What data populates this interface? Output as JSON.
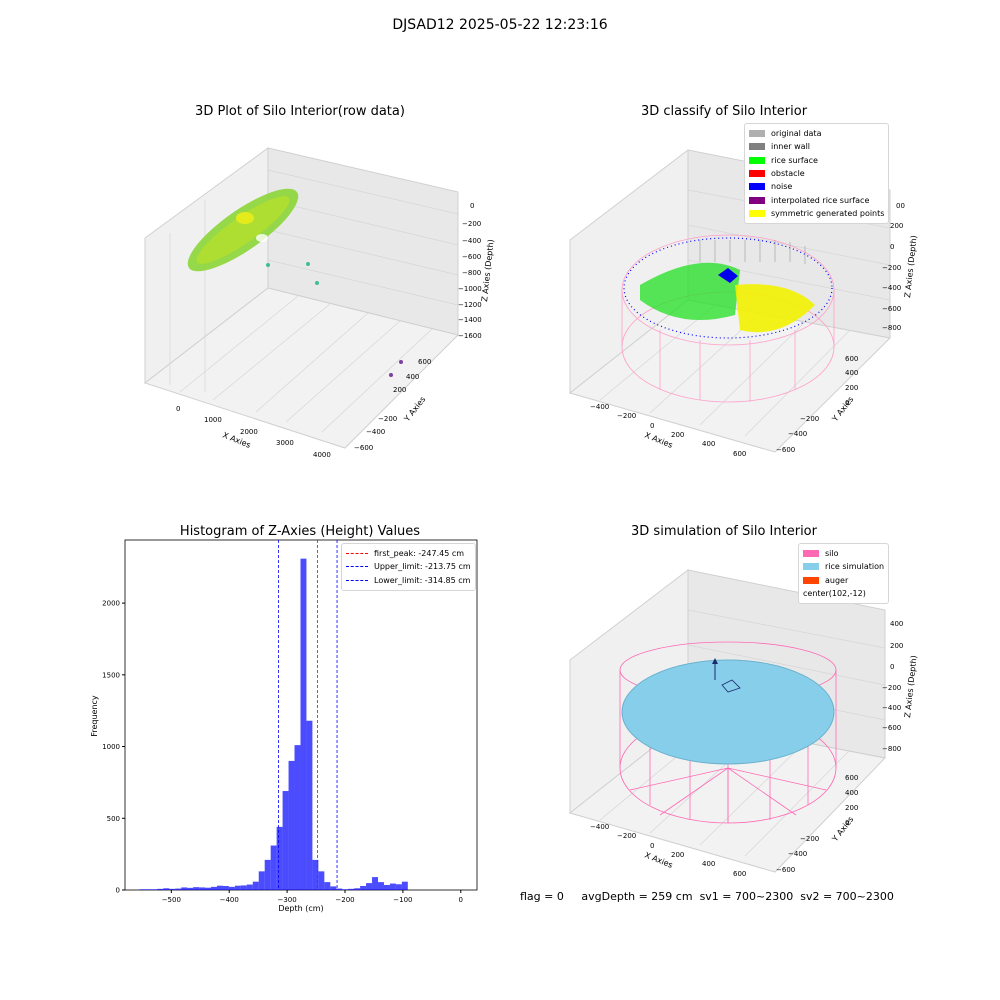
{
  "suptitle": "DJSAD12 2025-05-22 12:23:16",
  "panels": {
    "p1": {
      "title": "3D Plot of Silo Interior(row data)",
      "xlabel": "X Axies",
      "ylabel": "Y Axies",
      "zlabel": "Z Axies (Depth)",
      "xticks": [
        "0",
        "1000",
        "2000",
        "3000",
        "4000"
      ],
      "yticks": [
        "600",
        "400",
        "200",
        "−200",
        "−400",
        "−600"
      ],
      "zticks": [
        "0",
        "−200",
        "−400",
        "−600",
        "−800",
        "−1000",
        "−1200",
        "−1400",
        "−1600"
      ]
    },
    "p2": {
      "title": "3D classify of Silo Interior",
      "xlabel": "X Axies",
      "ylabel": "Y Axies",
      "zlabel": "Z Axies (Depth)",
      "xticks": [
        "−400",
        "−200",
        "0",
        "200",
        "400",
        "600"
      ],
      "yticks": [
        "600",
        "400",
        "200",
        "0",
        "−200",
        "−400",
        "−600"
      ],
      "zticks": [
        "200",
        "0",
        "−200",
        "−400",
        "−600",
        "−800"
      ],
      "zticks_extra": [
        "00"
      ],
      "legend": [
        {
          "label": "original data",
          "color": "#b0b0b0"
        },
        {
          "label": "inner wall",
          "color": "#808080"
        },
        {
          "label": "rice surface",
          "color": "#00ff00"
        },
        {
          "label": "obstacle",
          "color": "#ff0000"
        },
        {
          "label": "noise",
          "color": "#0000ff"
        },
        {
          "label": "interpolated rice surface",
          "color": "#800080"
        },
        {
          "label": "symmetric generated points",
          "color": "#ffff00"
        }
      ]
    },
    "p4": {
      "title": "3D simulation of Silo Interior",
      "xlabel": "X Axies",
      "ylabel": "Y Axies",
      "zlabel": "Z Axies (Depth)",
      "xticks": [
        "−400",
        "−200",
        "0",
        "200",
        "400",
        "600"
      ],
      "yticks": [
        "600",
        "400",
        "200",
        "0",
        "−200",
        "−400",
        "−600"
      ],
      "zticks": [
        "400",
        "200",
        "0",
        "−200",
        "−400",
        "−600",
        "−800"
      ],
      "legend": [
        {
          "label": "silo",
          "color": "#ff69b4"
        },
        {
          "label": "rice simulation",
          "color": "#87ceeb"
        },
        {
          "label": "auger",
          "color": "#ff4500"
        },
        {
          "label": "center(102,-12)",
          "color": "none"
        }
      ]
    }
  },
  "chart_data": [
    {
      "type": "histogram",
      "title": "Histogram of Z-Axies (Height) Values",
      "xlabel": "Depth (cm)",
      "ylabel": "Frequency",
      "xlim": [
        -580,
        28
      ],
      "ylim": [
        0,
        2440
      ],
      "xticks": [
        "−500",
        "−400",
        "−300",
        "−200",
        "−100",
        "0"
      ],
      "xtick_values": [
        -500,
        -400,
        -300,
        -200,
        -100,
        0
      ],
      "yticks": [
        "0",
        "500",
        "1000",
        "1500",
        "2000"
      ],
      "ytick_values": [
        0,
        500,
        1000,
        1500,
        2000
      ],
      "bar_color": "#0000ff",
      "bin_width": 10.3,
      "bins_start": [
        -555,
        -544.7,
        -534.4,
        -524.1,
        -513.8,
        -503.5,
        -493.2,
        -482.9,
        -472.6,
        -462.3,
        -452,
        -441.7,
        -431.4,
        -421.1,
        -410.8,
        -400.5,
        -390.2,
        -379.9,
        -369.6,
        -359.3,
        -349,
        -338.7,
        -328.4,
        -318.1,
        -307.8,
        -297.5,
        -287.2,
        -276.9,
        -266.6,
        -256.3,
        -246,
        -235.7,
        -225.4,
        -215.1,
        -204.8,
        -194.5,
        -184.2,
        -173.9,
        -163.6,
        -153.3,
        -143,
        -132.7,
        -122.4,
        -112.1,
        -101.8,
        -91.5,
        -81.2,
        -70.9,
        -60.6,
        -50.3
      ],
      "frequencies": [
        5,
        5,
        5,
        8,
        12,
        8,
        10,
        18,
        15,
        20,
        18,
        16,
        22,
        30,
        28,
        22,
        30,
        32,
        38,
        58,
        130,
        210,
        310,
        440,
        690,
        900,
        1010,
        2310,
        1180,
        210,
        130,
        55,
        25,
        10,
        5,
        8,
        12,
        28,
        48,
        90,
        55,
        35,
        45,
        40,
        58,
        0,
        0,
        0,
        0,
        0
      ],
      "reference_lines": [
        {
          "label": "first_peak: -247.45 cm",
          "x": -247.45,
          "color": "#ff0000"
        },
        {
          "label": "Upper_limit: -213.75 cm",
          "x": -213.75,
          "color": "#0000ff"
        },
        {
          "label": "Lower_limit: -314.85 cm",
          "x": -314.85,
          "color": "#0000ff"
        }
      ],
      "legend_position": "upper right"
    }
  ],
  "footer": {
    "flag": "flag = 0",
    "avg": "avgDepth = 259 cm",
    "sv1": "sv1 = 700~2300",
    "sv2": "sv2 = 700~2300"
  }
}
